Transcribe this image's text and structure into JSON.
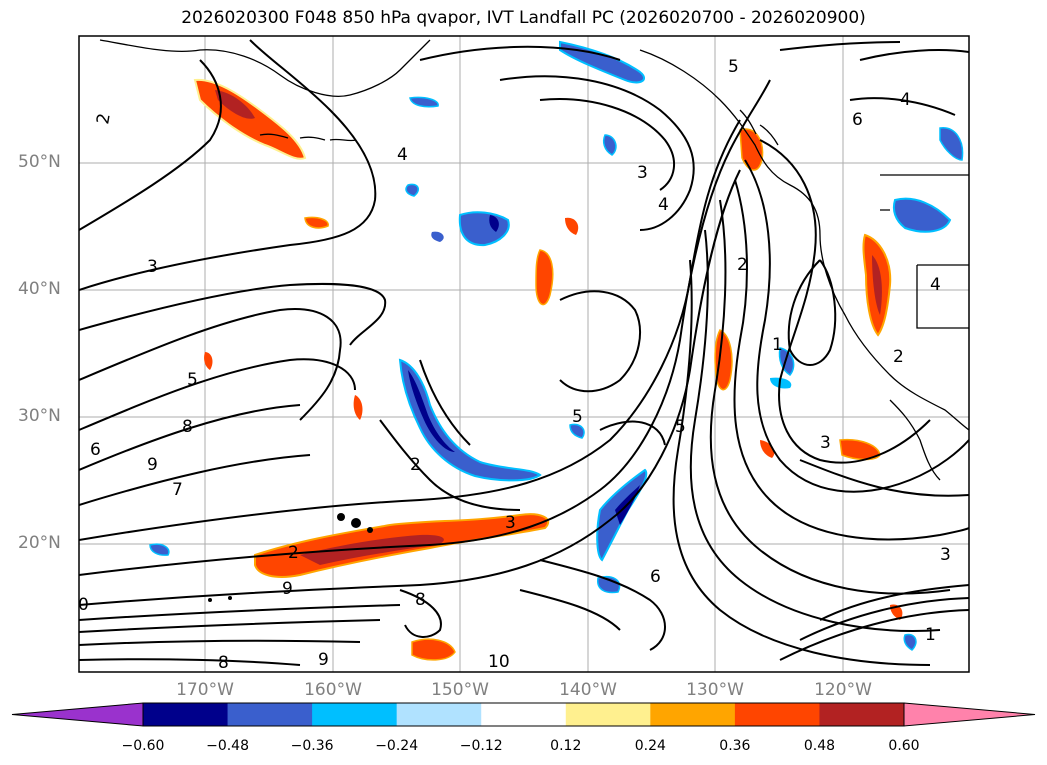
{
  "title": "2026020300 F048 850 hPa qvapor, IVT Landfall PC (2026020700 - 2026020900)",
  "lat_labels": [
    "50°N",
    "40°N",
    "30°N",
    "20°N"
  ],
  "lon_labels": [
    "170°W",
    "160°W",
    "150°W",
    "140°W",
    "130°W",
    "120°W"
  ],
  "contour_labels": [
    "2",
    "4",
    "3",
    "5",
    "6",
    "8",
    "9",
    "7",
    "2",
    "3",
    "2",
    "5",
    "9",
    "6",
    "8",
    "10",
    "4",
    "3",
    "2",
    "1",
    "3",
    "5",
    "4",
    "6",
    "9",
    "8",
    "0",
    "2",
    "4",
    "3",
    "1",
    "5"
  ],
  "colorbar": {
    "ticks": [
      "−0.60",
      "−0.48",
      "−0.36",
      "−0.24",
      "−0.12",
      "0.12",
      "0.24",
      "0.36",
      "0.48",
      "0.60"
    ],
    "colors": [
      "#9a32cd",
      "#00008b",
      "#3a5fcd",
      "#00bfff",
      "#b0e2ff",
      "#ffffff",
      "#fff08f",
      "#ffa500",
      "#ff4500",
      "#b22222",
      "#ff82ab"
    ]
  }
}
